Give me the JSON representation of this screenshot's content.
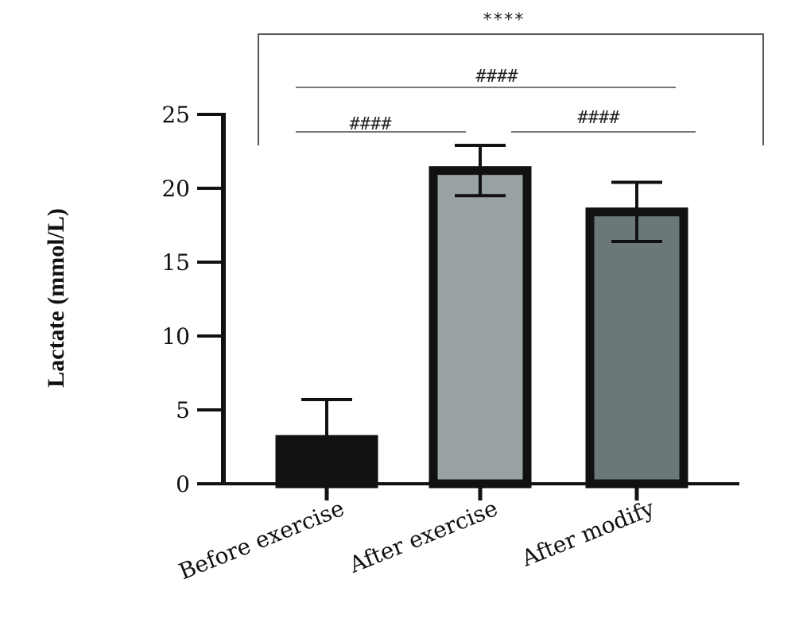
{
  "chart_data": {
    "type": "bar",
    "title": "",
    "xlabel": "",
    "ylabel": "Lactate (mmol/L)",
    "ylim": [
      0,
      25
    ],
    "yticks": [
      0,
      5,
      10,
      15,
      20,
      25
    ],
    "categories": [
      "Before exercise",
      "After exercise",
      "After modify"
    ],
    "values": [
      3.0,
      21.2,
      18.4
    ],
    "errors": [
      2.7,
      1.7,
      2.0
    ],
    "bar_colors": [
      "#111111",
      "#98a2a5",
      "#6b7878"
    ],
    "significance": [
      {
        "from": 0,
        "to": 1,
        "label": "####"
      },
      {
        "from": 1,
        "to": 2,
        "label": "####"
      },
      {
        "from": 0,
        "to": 2,
        "label": "####"
      },
      {
        "from": 0,
        "to": 2,
        "label": "****",
        "bracket": true
      }
    ]
  }
}
